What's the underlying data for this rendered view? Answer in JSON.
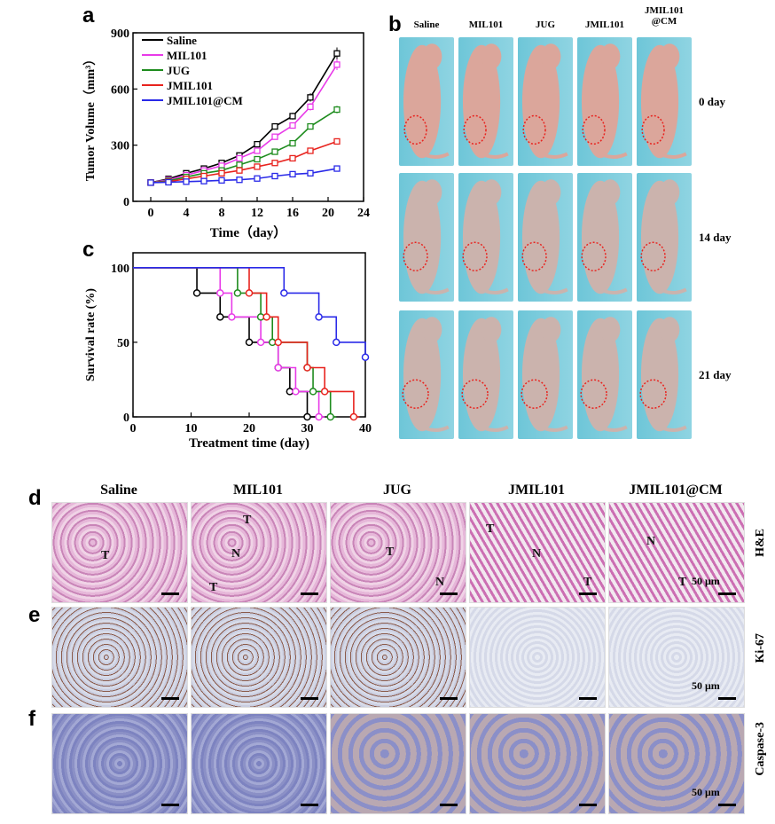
{
  "panel_letters": {
    "a": "a",
    "b": "b",
    "c": "c",
    "d": "d",
    "e": "e",
    "f": "f"
  },
  "chart_data": [
    {
      "type": "line",
      "panel": "a",
      "xlabel": "Time（day）",
      "ylabel": "Tumor Volume（mm³）",
      "xlim": [
        -2,
        24
      ],
      "ylim": [
        0,
        900
      ],
      "xticks": [
        "0",
        "4",
        "8",
        "12",
        "16",
        "20",
        "24"
      ],
      "yticks": [
        "0",
        "300",
        "600",
        "900"
      ],
      "x": [
        0,
        2,
        4,
        6,
        8,
        10,
        12,
        14,
        16,
        18,
        21
      ],
      "series": [
        {
          "name": "Saline",
          "color": "#000000",
          "marker": "square",
          "values": [
            100,
            120,
            150,
            175,
            205,
            245,
            305,
            400,
            455,
            555,
            790
          ]
        },
        {
          "name": "MIL101",
          "color": "#e83ae8",
          "marker": "square",
          "values": [
            100,
            115,
            140,
            165,
            190,
            230,
            270,
            345,
            405,
            505,
            730
          ]
        },
        {
          "name": "JUG",
          "color": "#1e8c1e",
          "marker": "square",
          "values": [
            100,
            110,
            130,
            150,
            165,
            195,
            225,
            265,
            310,
            400,
            490
          ]
        },
        {
          "name": "JMIL101",
          "color": "#e8231e",
          "marker": "square",
          "values": [
            100,
            105,
            120,
            135,
            150,
            165,
            185,
            205,
            230,
            270,
            320
          ]
        },
        {
          "name": "JMIL101@CM",
          "color": "#2a2ae8",
          "marker": "square",
          "values": [
            100,
            102,
            105,
            108,
            112,
            115,
            122,
            135,
            145,
            150,
            175
          ]
        }
      ],
      "legend": "top-left"
    },
    {
      "type": "line",
      "panel": "c",
      "step": true,
      "xlabel": "Treatment time (day)",
      "ylabel": "Survival rate (%)",
      "xlim": [
        0,
        40
      ],
      "ylim": [
        0,
        110
      ],
      "xticks": [
        "0",
        "10",
        "20",
        "30",
        "40"
      ],
      "yticks": [
        "0",
        "50",
        "100"
      ],
      "series": [
        {
          "name": "Saline",
          "color": "#000000",
          "points": [
            [
              0,
              100
            ],
            [
              11,
              100
            ],
            [
              11,
              83
            ],
            [
              15,
              83
            ],
            [
              15,
              67
            ],
            [
              20,
              67
            ],
            [
              20,
              50
            ],
            [
              25,
              50
            ],
            [
              25,
              33
            ],
            [
              27,
              33
            ],
            [
              27,
              17
            ],
            [
              30,
              17
            ],
            [
              30,
              0
            ],
            [
              32,
              0
            ]
          ]
        },
        {
          "name": "MIL101",
          "color": "#e83ae8",
          "points": [
            [
              0,
              100
            ],
            [
              15,
              100
            ],
            [
              15,
              83
            ],
            [
              17,
              83
            ],
            [
              17,
              67
            ],
            [
              22,
              67
            ],
            [
              22,
              50
            ],
            [
              25,
              50
            ],
            [
              25,
              33
            ],
            [
              28,
              33
            ],
            [
              28,
              17
            ],
            [
              32,
              17
            ],
            [
              32,
              0
            ],
            [
              33,
              0
            ]
          ]
        },
        {
          "name": "JUG",
          "color": "#1e8c1e",
          "points": [
            [
              0,
              100
            ],
            [
              18,
              100
            ],
            [
              18,
              83
            ],
            [
              22,
              83
            ],
            [
              22,
              67
            ],
            [
              24,
              67
            ],
            [
              24,
              50
            ],
            [
              30,
              50
            ],
            [
              30,
              33
            ],
            [
              31,
              33
            ],
            [
              31,
              17
            ],
            [
              34,
              17
            ],
            [
              34,
              0
            ],
            [
              35,
              0
            ]
          ]
        },
        {
          "name": "JMIL101",
          "color": "#e8231e",
          "points": [
            [
              0,
              100
            ],
            [
              20,
              100
            ],
            [
              20,
              83
            ],
            [
              23,
              83
            ],
            [
              23,
              67
            ],
            [
              25,
              67
            ],
            [
              25,
              50
            ],
            [
              30,
              50
            ],
            [
              30,
              33
            ],
            [
              33,
              33
            ],
            [
              33,
              17
            ],
            [
              38,
              17
            ],
            [
              38,
              0
            ],
            [
              39,
              0
            ]
          ]
        },
        {
          "name": "JMIL101@CM",
          "color": "#2a2ae8",
          "points": [
            [
              0,
              100
            ],
            [
              26,
              100
            ],
            [
              26,
              83
            ],
            [
              32,
              83
            ],
            [
              32,
              67
            ],
            [
              35,
              67
            ],
            [
              35,
              50
            ],
            [
              40,
              50
            ],
            [
              40,
              40
            ]
          ]
        }
      ]
    }
  ],
  "photos": {
    "columns": [
      "Saline",
      "MIL101",
      "JUG",
      "JMIL101",
      "JMIL101\n@CM"
    ],
    "rows": [
      "0 day",
      "14 day",
      "21 day"
    ]
  },
  "histology": {
    "columns": [
      "Saline",
      "MIL101",
      "JUG",
      "JMIL101",
      "JMIL101@CM"
    ],
    "rows": [
      "H&E",
      "Ki-67",
      "Caspase-3"
    ],
    "scale_label": "50 μm",
    "marks": {
      "he_saline": [
        "T"
      ],
      "he_mil101": [
        "T",
        "N",
        "T"
      ],
      "he_jug": [
        "T",
        "N"
      ],
      "he_jmil101": [
        "T",
        "N",
        "T"
      ],
      "he_jmilcm": [
        "N",
        "T"
      ]
    }
  },
  "colors": {
    "mouse_bg": "#6ec6d8",
    "mouse_skin": "#d9a79a",
    "he_pink": "#d99ac8",
    "ki67": "#b7bfd8",
    "casp3": "#8d93c8",
    "circle": "#e8231e"
  }
}
